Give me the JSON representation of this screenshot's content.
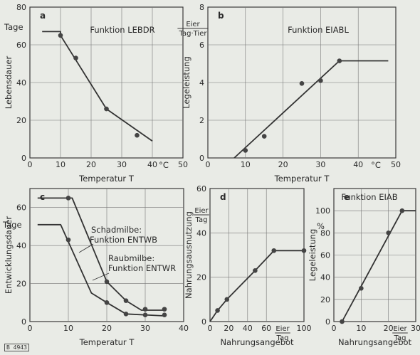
{
  "footnote": "B 4943",
  "chart_data": [
    {
      "type": "line",
      "panel": "a",
      "function_label": "Funktion LEBDR",
      "xlabel": "Temperatur T",
      "ylabel": "Lebensdauer",
      "y_unit": "Tage",
      "x_unit": "°C",
      "xlim": [
        0,
        50
      ],
      "ylim": [
        0,
        80
      ],
      "x_ticks": [
        "0",
        "10",
        "20",
        "30",
        "40",
        "50"
      ],
      "y_ticks": [
        "0",
        "20",
        "40",
        "60",
        "80"
      ],
      "grid": true,
      "series": [
        {
          "line": [
            [
              4,
              67
            ],
            [
              10,
              67
            ],
            [
              10,
              65
            ],
            [
              25,
              26
            ],
            [
              40,
              9
            ]
          ],
          "points": [
            [
              10,
              65
            ],
            [
              15,
              53
            ],
            [
              25,
              26
            ],
            [
              35,
              12
            ]
          ]
        }
      ]
    },
    {
      "type": "line",
      "panel": "b",
      "function_label": "Funktion EIABL",
      "xlabel": "Temperatur T",
      "ylabel": "Legeleistung",
      "y_unit": "Eier / Tag·Tier",
      "x_unit": "°C",
      "xlim": [
        0,
        50
      ],
      "ylim": [
        0,
        8
      ],
      "x_ticks": [
        "0",
        "10",
        "20",
        "30",
        "40",
        "50"
      ],
      "y_ticks": [
        "0",
        "2",
        "4",
        "6",
        "8"
      ],
      "grid": true,
      "series": [
        {
          "line": [
            [
              7,
              0
            ],
            [
              35,
              5.15
            ],
            [
              48,
              5.15
            ]
          ],
          "points": [
            [
              10,
              0.4
            ],
            [
              15,
              1.15
            ],
            [
              25,
              3.95
            ],
            [
              30,
              4.1
            ],
            [
              35,
              5.15
            ]
          ]
        }
      ]
    },
    {
      "type": "line",
      "panel": "c",
      "xlabel": "Temperatur T",
      "ylabel": "Entwicklungsdauer",
      "y_unit": "Tage",
      "xlim": [
        0,
        40
      ],
      "ylim": [
        0,
        70
      ],
      "x_ticks": [
        "0",
        "10",
        "20",
        "30",
        "40"
      ],
      "y_ticks": [
        "0",
        "20",
        "40",
        "60"
      ],
      "grid": true,
      "series": [
        {
          "name": "Schadmilbe: Funktion ENTWB",
          "line": [
            [
              2,
              65
            ],
            [
              10,
              65
            ],
            [
              11,
              65
            ],
            [
              20,
              21
            ],
            [
              25,
              11
            ],
            [
              29,
              6
            ],
            [
              35,
              6
            ]
          ],
          "points": [
            [
              10,
              65
            ],
            [
              20,
              21
            ],
            [
              25,
              11
            ],
            [
              30,
              6.5
            ],
            [
              35,
              6.5
            ]
          ]
        },
        {
          "name": "Raubmilbe: Funktion ENTWR",
          "line": [
            [
              2,
              51
            ],
            [
              8,
              51
            ],
            [
              16,
              15
            ],
            [
              20,
              10
            ],
            [
              25,
              4
            ],
            [
              35,
              3
            ]
          ],
          "points": [
            [
              10,
              43
            ],
            [
              20,
              10
            ],
            [
              25,
              4
            ],
            [
              30,
              3.5
            ],
            [
              35,
              3.5
            ]
          ]
        }
      ]
    },
    {
      "type": "line",
      "panel": "d",
      "xlabel": "Nahrungsangebot",
      "ylabel": "Nahrungsausnutzung",
      "y_unit": "Eier / Tag",
      "x_unit": "Eier / Tag",
      "xlim": [
        0,
        100
      ],
      "ylim": [
        0,
        60
      ],
      "x_ticks": [
        "0",
        "20",
        "40",
        "60",
        "100"
      ],
      "y_ticks": [
        "0",
        "20",
        "40",
        "60"
      ],
      "grid": true,
      "series": [
        {
          "line": [
            [
              0,
              0
            ],
            [
              8,
              5
            ],
            [
              18,
              10
            ],
            [
              48,
              23
            ],
            [
              68,
              32
            ],
            [
              100,
              32
            ]
          ],
          "points": [
            [
              8,
              5
            ],
            [
              18,
              10
            ],
            [
              48,
              23
            ],
            [
              68,
              32
            ],
            [
              100,
              32
            ]
          ]
        }
      ]
    },
    {
      "type": "line",
      "panel": "e",
      "function_label": "Funktion EIAB",
      "xlabel": "Nahrungsangebot",
      "ylabel": "Legeleistung",
      "y_unit": "%",
      "x_unit": "Eier / Tag",
      "xlim": [
        0,
        30
      ],
      "ylim": [
        0,
        120
      ],
      "x_ticks": [
        "0",
        "10",
        "20",
        "30"
      ],
      "y_ticks": [
        "0",
        "20",
        "40",
        "60",
        "80",
        "100"
      ],
      "grid": true,
      "series": [
        {
          "line": [
            [
              3,
              0
            ],
            [
              25,
              100
            ],
            [
              30,
              100
            ]
          ],
          "points": [
            [
              3,
              0
            ],
            [
              10,
              30
            ],
            [
              20,
              80
            ],
            [
              25,
              100
            ]
          ]
        }
      ]
    }
  ]
}
